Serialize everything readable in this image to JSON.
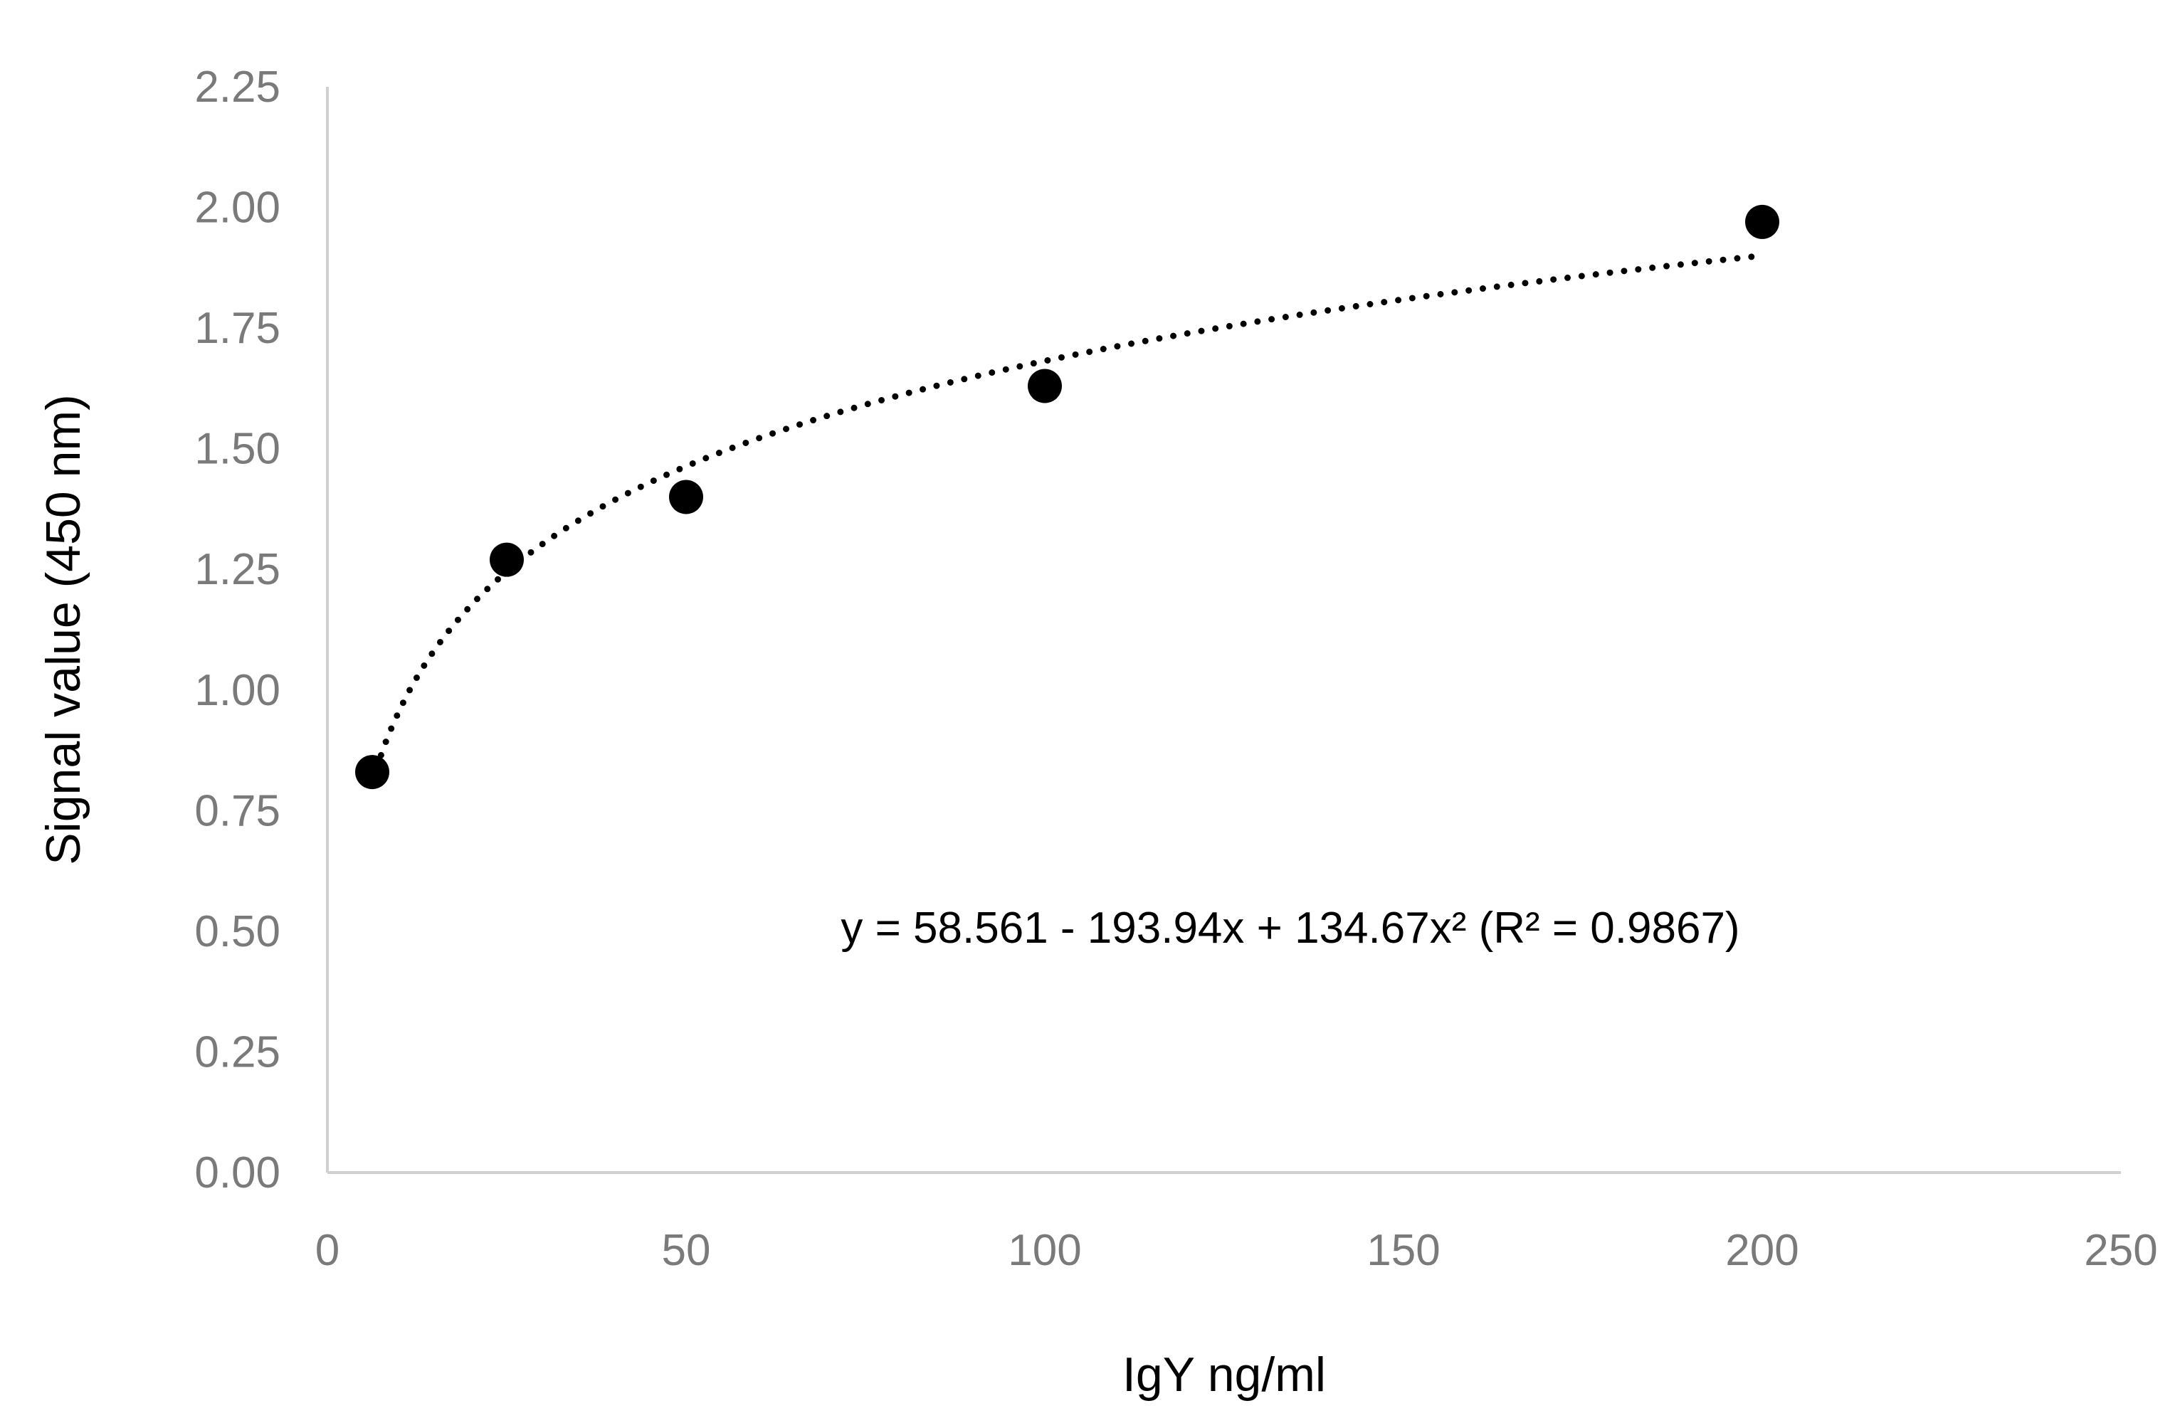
{
  "chart_data": {
    "type": "scatter",
    "title": "",
    "xlabel": "IgY ng/ml",
    "ylabel": "Signal value (450 nm)",
    "xlim": [
      0,
      250
    ],
    "ylim": [
      0,
      2.25
    ],
    "x_ticks": [
      "0",
      "50",
      "100",
      "150",
      "200",
      "250"
    ],
    "y_ticks": [
      "0.00",
      "0.25",
      "0.50",
      "0.75",
      "1.00",
      "1.25",
      "1.50",
      "1.75",
      "2.00",
      "2.25"
    ],
    "grid": false,
    "legend": "none",
    "series": [
      {
        "x": [
          6.25,
          25,
          50,
          100,
          200
        ],
        "y": [
          0.83,
          1.27,
          1.4,
          1.63,
          1.97
        ],
        "marker": "circle",
        "color": "#000000"
      }
    ],
    "trendline": {
      "style": "dotted",
      "color": "#000000",
      "x_range": [
        6.25,
        200
      ]
    },
    "annotation": "y = 58.561 - 193.94x + 134.67x²  (R² = 0.9867)"
  }
}
